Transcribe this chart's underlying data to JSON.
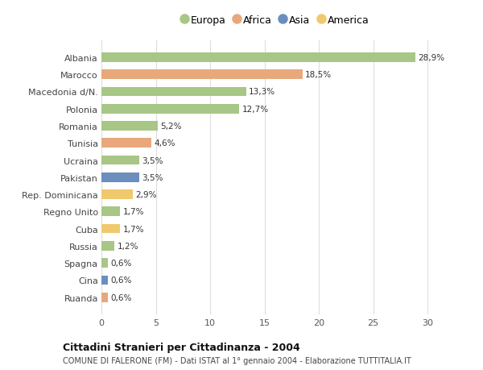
{
  "categories": [
    "Albania",
    "Marocco",
    "Macedonia d/N.",
    "Polonia",
    "Romania",
    "Tunisia",
    "Ucraina",
    "Pakistan",
    "Rep. Dominicana",
    "Regno Unito",
    "Cuba",
    "Russia",
    "Spagna",
    "Cina",
    "Ruanda"
  ],
  "values": [
    28.9,
    18.5,
    13.3,
    12.7,
    5.2,
    4.6,
    3.5,
    3.5,
    2.9,
    1.7,
    1.7,
    1.2,
    0.6,
    0.6,
    0.6
  ],
  "labels": [
    "28,9%",
    "18,5%",
    "13,3%",
    "12,7%",
    "5,2%",
    "4,6%",
    "3,5%",
    "3,5%",
    "2,9%",
    "1,7%",
    "1,7%",
    "1,2%",
    "0,6%",
    "0,6%",
    "0,6%"
  ],
  "colors": [
    "#a8c686",
    "#e8a87c",
    "#a8c686",
    "#a8c686",
    "#a8c686",
    "#e8a87c",
    "#a8c686",
    "#6b8ebf",
    "#f0c96e",
    "#a8c686",
    "#f0c96e",
    "#a8c686",
    "#a8c686",
    "#6b8ebf",
    "#e8a87c"
  ],
  "legend_labels": [
    "Europa",
    "Africa",
    "Asia",
    "America"
  ],
  "legend_colors": [
    "#a8c686",
    "#e8a87c",
    "#6b8ebf",
    "#f0c96e"
  ],
  "title_bold": "Cittadini Stranieri per Cittadinanza - 2004",
  "subtitle": "COMUNE DI FALERONE (FM) - Dati ISTAT al 1° gennaio 2004 - Elaborazione TUTTITALIA.IT",
  "xlim": [
    0,
    32
  ],
  "xticks": [
    0,
    5,
    10,
    15,
    20,
    25,
    30
  ],
  "background_color": "#ffffff",
  "grid_color": "#dddddd",
  "bar_height": 0.55
}
